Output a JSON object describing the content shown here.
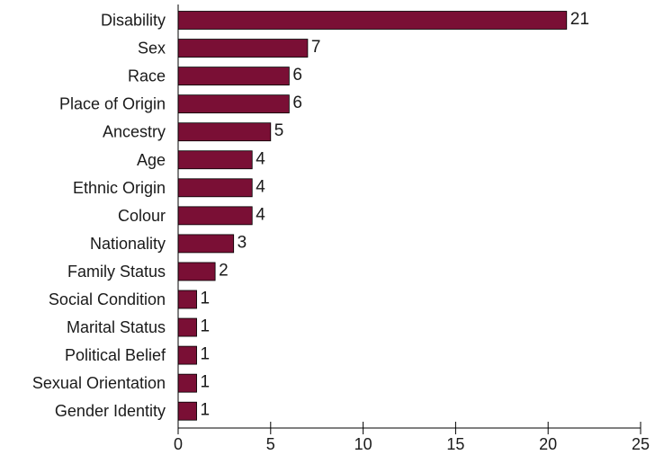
{
  "chart_data": {
    "type": "bar",
    "orientation": "horizontal",
    "categories": [
      "Disability",
      "Sex",
      "Race",
      "Place of Origin",
      "Ancestry",
      "Age",
      "Ethnic Origin",
      "Colour",
      "Nationality",
      "Family Status",
      "Social Condition",
      "Marital Status",
      "Political Belief",
      "Sexual Orientation",
      "Gender Identity"
    ],
    "values": [
      21,
      7,
      6,
      6,
      5,
      4,
      4,
      4,
      3,
      2,
      1,
      1,
      1,
      1,
      1
    ],
    "xlim": [
      0,
      25
    ],
    "xticks": [
      0,
      5,
      10,
      15,
      20,
      25
    ],
    "title": "",
    "xlabel": "",
    "ylabel": "",
    "grid": false,
    "bar_color": "#7a0f35"
  }
}
